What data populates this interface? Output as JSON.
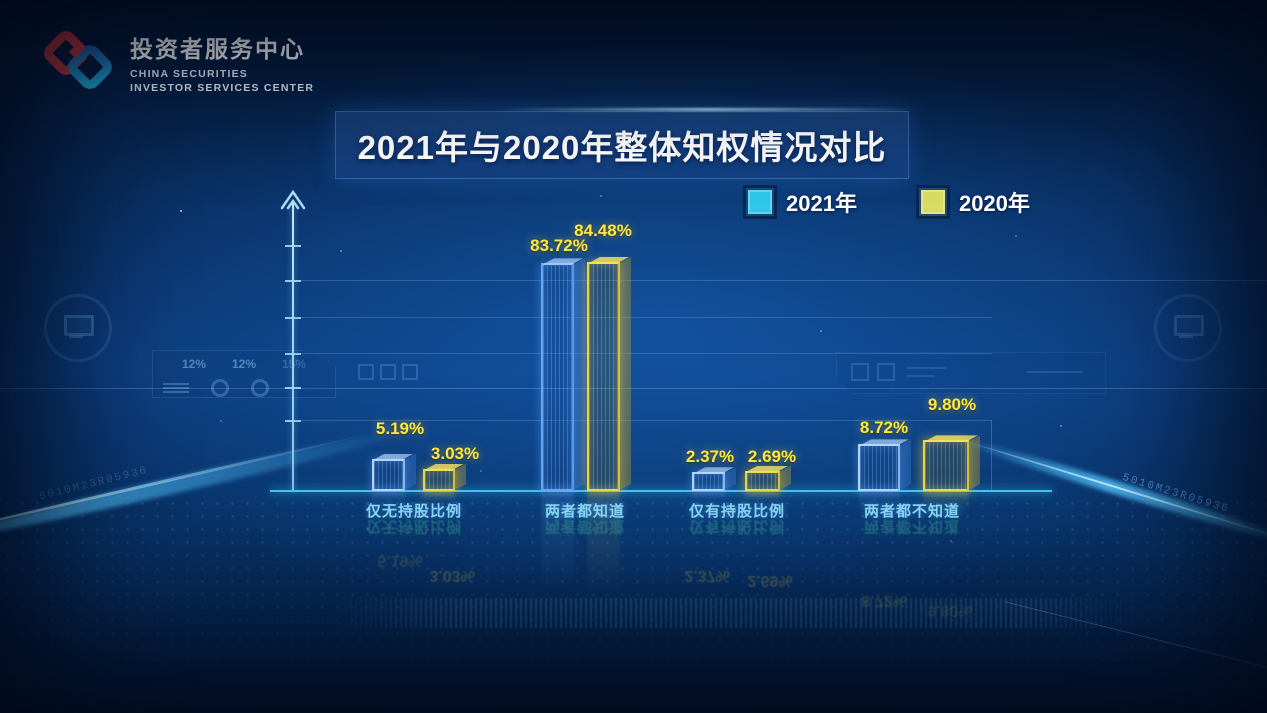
{
  "brand": {
    "name_zh": "投资者服务中心",
    "name_en_line1": "CHINA SECURITIES",
    "name_en_line2": "INVESTOR SERVICES CENTER"
  },
  "title": "2021年与2020年整体知权情况对比",
  "legend": [
    {
      "label": "2021年",
      "color": "#2fc6ea"
    },
    {
      "label": "2020年",
      "color": "#d9dc63"
    }
  ],
  "chart_data": {
    "type": "bar",
    "title": "2021年与2020年整体知权情况对比",
    "categories": [
      "仅无持股比例",
      "两者都知道",
      "仅有持股比例",
      "两者都不知道"
    ],
    "series": [
      {
        "name": "2021年",
        "color": "#2fc6ea",
        "values": [
          5.19,
          83.72,
          2.37,
          8.72
        ],
        "display": [
          "5.19%",
          "83.72%",
          "2.37%",
          "8.72%"
        ]
      },
      {
        "name": "2020年",
        "color": "#d9dc63",
        "values": [
          3.03,
          84.48,
          2.69,
          9.8
        ],
        "display": [
          "3.03%",
          "84.48%",
          "2.69%",
          "9.80%"
        ]
      }
    ],
    "unit": "%",
    "ylim": [
      0,
      100
    ],
    "grid": true,
    "legend_position": "top-right"
  },
  "colors": {
    "background": "#0c3d7e",
    "baseline": "#41c4f2",
    "value_label": "#ffe93c",
    "category_label": "#89d3f4",
    "title_text": "#ffffff"
  },
  "decor": {
    "hud_values": [
      "12%",
      "12%",
      "15%"
    ],
    "serial_text": "5010M23R05936"
  }
}
